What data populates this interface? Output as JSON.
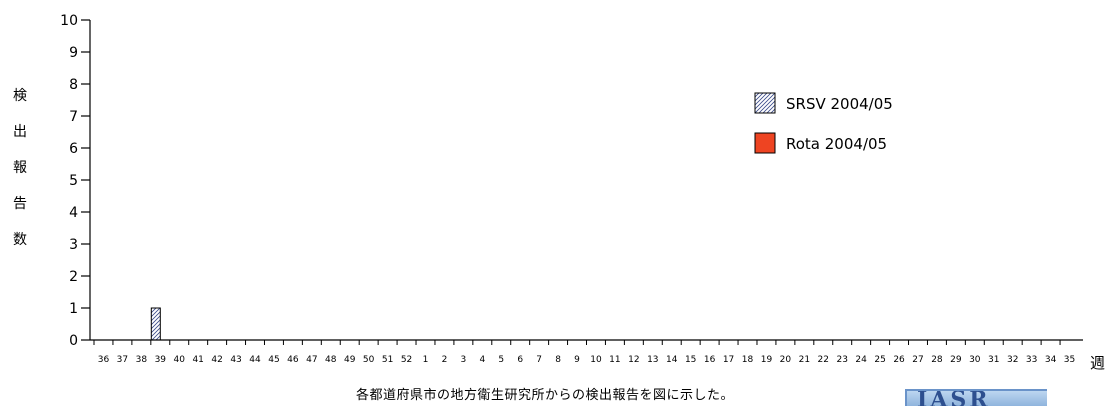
{
  "chart_data": {
    "type": "bar",
    "ylabel": "検出報告数",
    "xlabel": "週",
    "ylim": [
      0,
      10
    ],
    "yticks": [
      "0",
      "1",
      "2",
      "3",
      "4",
      "5",
      "6",
      "7",
      "8",
      "9",
      "10"
    ],
    "categories": [
      "36",
      "37",
      "38",
      "39",
      "40",
      "41",
      "42",
      "43",
      "44",
      "45",
      "46",
      "47",
      "48",
      "49",
      "50",
      "51",
      "52",
      "1",
      "2",
      "3",
      "4",
      "5",
      "6",
      "7",
      "8",
      "9",
      "10",
      "11",
      "12",
      "13",
      "14",
      "15",
      "16",
      "17",
      "18",
      "19",
      "20",
      "21",
      "22",
      "23",
      "24",
      "25",
      "26",
      "27",
      "28",
      "29",
      "30",
      "31",
      "32",
      "33",
      "34",
      "35"
    ],
    "series": [
      {
        "name": "SRSV 2004/05",
        "pattern": "hatched",
        "color": "#3a4a8a",
        "values": [
          0,
          0,
          0,
          1,
          0,
          0,
          0,
          0,
          0,
          0,
          0,
          0,
          0,
          0,
          0,
          0,
          0,
          0,
          0,
          0,
          0,
          0,
          0,
          0,
          0,
          0,
          0,
          0,
          0,
          0,
          0,
          0,
          0,
          0,
          0,
          0,
          0,
          0,
          0,
          0,
          0,
          0,
          0,
          0,
          0,
          0,
          0,
          0,
          0,
          0,
          0,
          0
        ]
      },
      {
        "name": "Rota 2004/05",
        "pattern": "solid",
        "color": "#ee4422",
        "values": [
          0,
          0,
          0,
          0,
          0,
          0,
          0,
          0,
          0,
          0,
          0,
          0,
          0,
          0,
          0,
          0,
          0,
          0,
          0,
          0,
          0,
          0,
          0,
          0,
          0,
          0,
          0,
          0,
          0,
          0,
          0,
          0,
          0,
          0,
          0,
          0,
          0,
          0,
          0,
          0,
          0,
          0,
          0,
          0,
          0,
          0,
          0,
          0,
          0,
          0,
          0,
          0
        ]
      }
    ],
    "legend_position": "top-right"
  },
  "caption": "各都道府県市の地方衛生研究所からの検出報告を図に示した。",
  "logo_text": "IASR"
}
